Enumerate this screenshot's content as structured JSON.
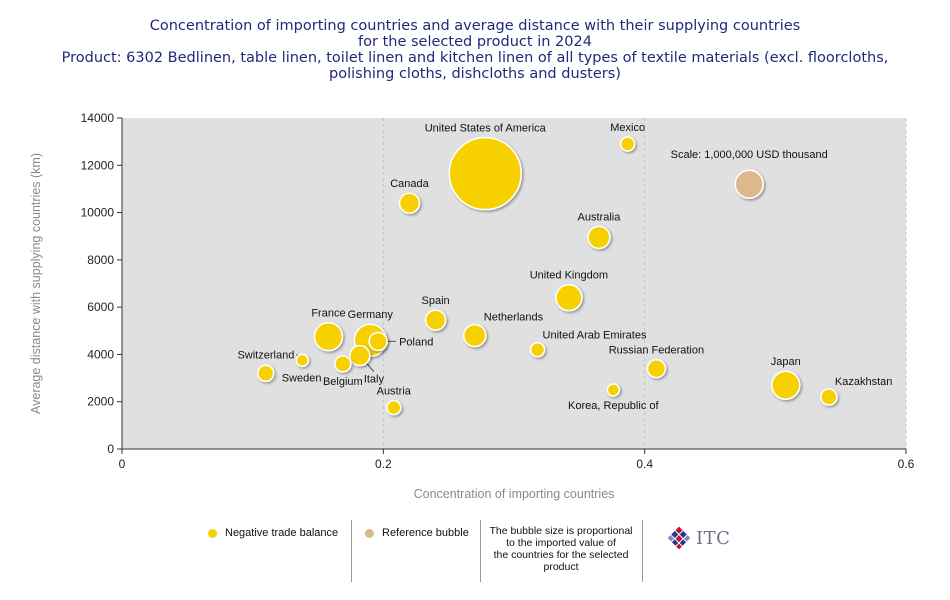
{
  "title_lines": [
    "Concentration of importing countries and average distance with their supplying countries",
    "for the selected product in 2024",
    "Product: 6302 Bedlinen, table linen, toilet linen and kitchen linen of all types of textile materials (excl. floorcloths,",
    "polishing cloths, dishcloths and dusters)"
  ],
  "legend": {
    "negative_label": "Negative trade balance",
    "reference_label": "Reference bubble",
    "note_lines": [
      "The bubble size is proportional",
      "to the imported value of",
      "the countries for the selected",
      "product"
    ],
    "logo_text": "ITC"
  },
  "colors": {
    "negative": "#f7d000",
    "reference": "#dcb98a",
    "plot_bg": "#e0e0e0",
    "title": "#1f2a7a",
    "axis_text": "#8a8a8a"
  },
  "chart_data": {
    "type": "scatter",
    "xlabel": "Concentration of importing countries",
    "ylabel": "Average distance with supplying countries (km)",
    "xlim": [
      0,
      0.6
    ],
    "ylim": [
      0,
      14000
    ],
    "x_ticks": [
      "0",
      "0.2",
      "0.4",
      "0.6"
    ],
    "y_ticks": [
      "0",
      "2000",
      "4000",
      "6000",
      "8000",
      "10000",
      "12000",
      "14000"
    ],
    "grid": "vertical dashed",
    "points": [
      {
        "name": "United States of America",
        "x": 0.278,
        "y": 11650,
        "r": 36,
        "label_pos": "top"
      },
      {
        "name": "Mexico",
        "x": 0.387,
        "y": 12900,
        "r": 7,
        "label_pos": "top"
      },
      {
        "name": "Canada",
        "x": 0.22,
        "y": 10400,
        "r": 10,
        "label_pos": "top"
      },
      {
        "name": "Australia",
        "x": 0.365,
        "y": 8950,
        "r": 11,
        "label_pos": "top"
      },
      {
        "name": "United Kingdom",
        "x": 0.342,
        "y": 6400,
        "r": 13,
        "label_pos": "top"
      },
      {
        "name": "Spain",
        "x": 0.24,
        "y": 5450,
        "r": 10,
        "label_pos": "top"
      },
      {
        "name": "Netherlands",
        "x": 0.27,
        "y": 4800,
        "r": 11,
        "label_pos": "topright"
      },
      {
        "name": "United Arab Emirates",
        "x": 0.318,
        "y": 4200,
        "r": 7,
        "label_pos": "topright"
      },
      {
        "name": "France",
        "x": 0.158,
        "y": 4750,
        "r": 14,
        "label_pos": "top"
      },
      {
        "name": "Germany",
        "x": 0.19,
        "y": 4600,
        "r": 16,
        "label_pos": "top"
      },
      {
        "name": "Poland",
        "x": 0.196,
        "y": 4550,
        "r": 9,
        "label_pos": "leader-right"
      },
      {
        "name": "Italy",
        "x": 0.182,
        "y": 3950,
        "r": 10,
        "label_pos": "leader-down"
      },
      {
        "name": "Switzerland",
        "x": 0.138,
        "y": 3750,
        "r": 6,
        "label_pos": "leader-left"
      },
      {
        "name": "Belgium",
        "x": 0.169,
        "y": 3600,
        "r": 8,
        "label_pos": "below"
      },
      {
        "name": "Sweden",
        "x": 0.11,
        "y": 3200,
        "r": 8,
        "label_pos": "right"
      },
      {
        "name": "Austria",
        "x": 0.208,
        "y": 1750,
        "r": 7,
        "label_pos": "top"
      },
      {
        "name": "Russian Federation",
        "x": 0.409,
        "y": 3400,
        "r": 9,
        "label_pos": "top"
      },
      {
        "name": "Korea, Republic of",
        "x": 0.376,
        "y": 2500,
        "r": 6,
        "label_pos": "below"
      },
      {
        "name": "Japan",
        "x": 0.508,
        "y": 2700,
        "r": 14,
        "label_pos": "top"
      },
      {
        "name": "Kazakhstan",
        "x": 0.541,
        "y": 2200,
        "r": 8,
        "label_pos": "topright"
      }
    ],
    "reference": {
      "name": "Scale: 1,000,000 USD thousand",
      "x": 0.48,
      "y": 11200,
      "r": 14
    }
  }
}
